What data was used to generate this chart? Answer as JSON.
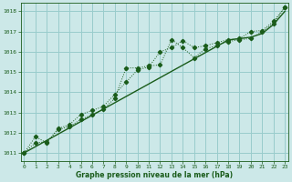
{
  "xlabel": "Graphe pression niveau de la mer (hPa)",
  "background_color": "#cce8e8",
  "grid_color": "#99cccc",
  "line_color": "#1a5c1a",
  "x_values": [
    0,
    1,
    2,
    3,
    4,
    5,
    6,
    7,
    8,
    9,
    10,
    11,
    12,
    13,
    14,
    15,
    16,
    17,
    18,
    19,
    20,
    21,
    22,
    23
  ],
  "series1": [
    1011.0,
    1011.8,
    1011.5,
    1012.2,
    1012.4,
    1012.9,
    1013.1,
    1013.3,
    1013.9,
    1014.5,
    1015.1,
    1015.25,
    1016.0,
    1016.2,
    1016.55,
    1016.2,
    1016.3,
    1016.45,
    1016.6,
    1016.65,
    1017.0,
    1017.05,
    1017.5,
    1018.2
  ],
  "series2": [
    1011.0,
    1011.5,
    1011.55,
    1012.15,
    1012.3,
    1012.65,
    1012.9,
    1013.15,
    1013.7,
    1015.2,
    1015.2,
    1015.3,
    1015.35,
    1016.6,
    1016.2,
    1015.7,
    1016.15,
    1016.3,
    1016.5,
    1016.6,
    1016.65,
    1017.0,
    1017.4,
    1018.2
  ],
  "trend": [
    1011.0,
    1011.31,
    1011.62,
    1011.93,
    1012.24,
    1012.55,
    1012.86,
    1013.17,
    1013.48,
    1013.79,
    1014.1,
    1014.41,
    1014.72,
    1015.03,
    1015.34,
    1015.65,
    1015.96,
    1016.27,
    1016.58,
    1016.65,
    1016.72,
    1016.9,
    1017.35,
    1018.0
  ],
  "ylim": [
    1010.6,
    1018.4
  ],
  "yticks": [
    1011,
    1012,
    1013,
    1014,
    1015,
    1016,
    1017,
    1018
  ],
  "xlim": [
    -0.3,
    23.3
  ],
  "xticks": [
    0,
    1,
    2,
    3,
    4,
    5,
    6,
    7,
    8,
    9,
    10,
    11,
    12,
    13,
    14,
    15,
    16,
    17,
    18,
    19,
    20,
    21,
    22,
    23
  ]
}
